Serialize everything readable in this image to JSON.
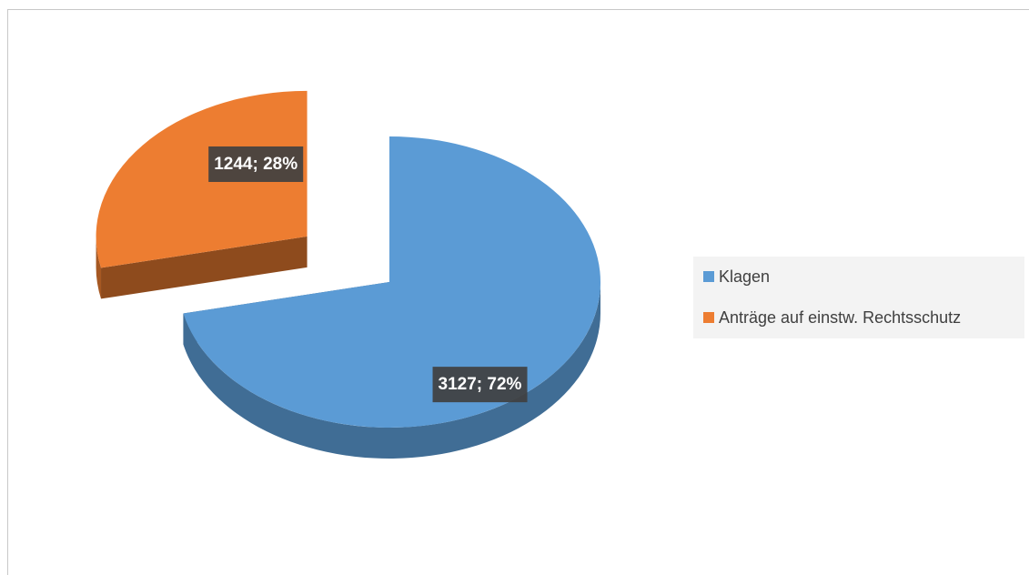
{
  "chart_data": {
    "type": "pie",
    "style": "3d-exploded",
    "categories": [
      "Klagen",
      "Anträge auf einstw. Rechtsschutz"
    ],
    "values": [
      3127,
      1244
    ],
    "value_labels": [
      "3127; 72%",
      "1244; 28%"
    ],
    "colors": [
      "#5b9bd5",
      "#ed7d31"
    ],
    "exploded": [
      false,
      true
    ],
    "legend": "right"
  }
}
